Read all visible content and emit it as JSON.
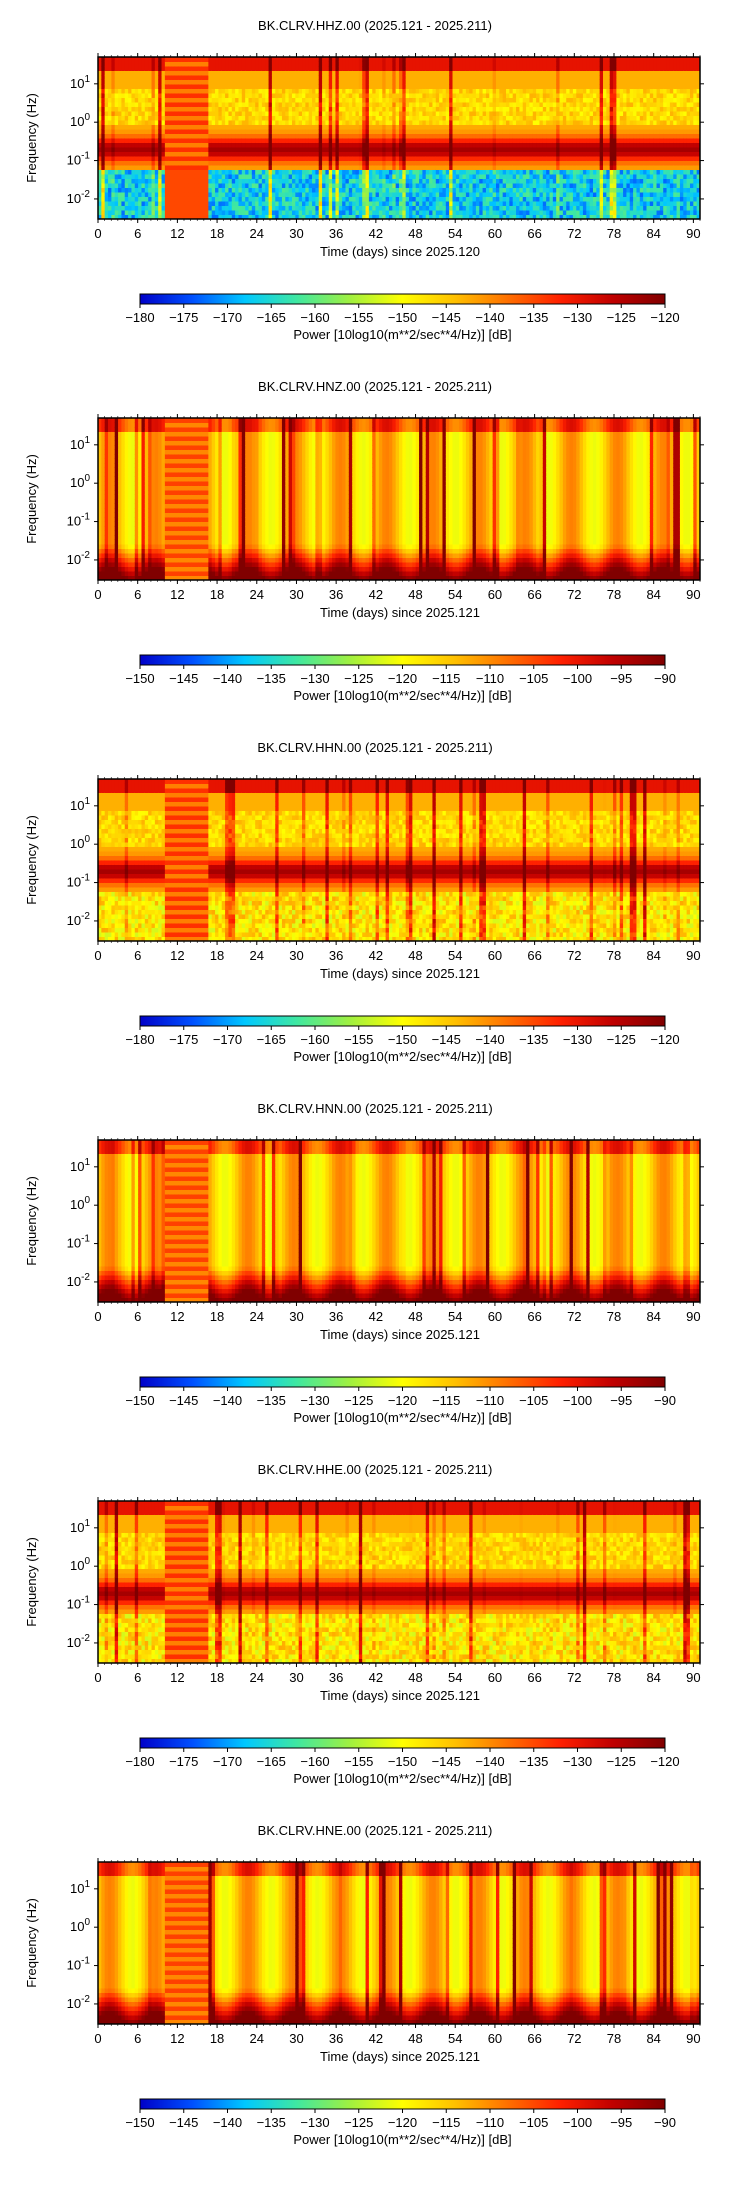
{
  "figure": {
    "panels": [
      {
        "title": "BK.CLRV.HHZ.00 (2025.121 - 2025.211)",
        "xlabel": "Time (days) since 2025.120",
        "ylabel": "Frequency (Hz)",
        "colorbar_label": "Power [10log10(m**2/sec**4/Hz)] [dB]",
        "colorbar_ticks": [
          "−180",
          "−175",
          "−170",
          "−165",
          "−160",
          "−155",
          "−150",
          "−145",
          "−140",
          "−135",
          "−130",
          "−125",
          "−120"
        ],
        "style": "microseism"
      },
      {
        "title": "BK.CLRV.HNZ.00 (2025.121 - 2025.211)",
        "xlabel": "Time (days) since 2025.121",
        "ylabel": "Frequency (Hz)",
        "colorbar_label": "Power [10log10(m**2/sec**4/Hz)] [dB]",
        "colorbar_ticks": [
          "−150",
          "−145",
          "−140",
          "−135",
          "−130",
          "−125",
          "−120",
          "−115",
          "−110",
          "−105",
          "−100",
          "−95",
          "−90"
        ],
        "style": "flat"
      },
      {
        "title": "BK.CLRV.HHN.00 (2025.121 - 2025.211)",
        "xlabel": "Time (days) since 2025.121",
        "ylabel": "Frequency (Hz)",
        "colorbar_label": "Power [10log10(m**2/sec**4/Hz)] [dB]",
        "colorbar_ticks": [
          "−180",
          "−175",
          "−170",
          "−165",
          "−160",
          "−155",
          "−150",
          "−145",
          "−140",
          "−135",
          "−130",
          "−125",
          "−120"
        ],
        "style": "horizontal"
      },
      {
        "title": "BK.CLRV.HNN.00 (2025.121 - 2025.211)",
        "xlabel": "Time (days) since 2025.121",
        "ylabel": "Frequency (Hz)",
        "colorbar_label": "Power [10log10(m**2/sec**4/Hz)] [dB]",
        "colorbar_ticks": [
          "−150",
          "−145",
          "−140",
          "−135",
          "−130",
          "−125",
          "−120",
          "−115",
          "−110",
          "−105",
          "−100",
          "−95",
          "−90"
        ],
        "style": "flat"
      },
      {
        "title": "BK.CLRV.HHE.00 (2025.121 - 2025.211)",
        "xlabel": "Time (days) since 2025.121",
        "ylabel": "Frequency (Hz)",
        "colorbar_label": "Power [10log10(m**2/sec**4/Hz)] [dB]",
        "colorbar_ticks": [
          "−180",
          "−175",
          "−170",
          "−165",
          "−160",
          "−155",
          "−150",
          "−145",
          "−140",
          "−135",
          "−130",
          "−125",
          "−120"
        ],
        "style": "horizontal"
      },
      {
        "title": "BK.CLRV.HNE.00 (2025.121 - 2025.211)",
        "xlabel": "Time (days) since 2025.121",
        "ylabel": "Frequency (Hz)",
        "colorbar_label": "Power [10log10(m**2/sec**4/Hz)] [dB]",
        "colorbar_ticks": [
          "−150",
          "−145",
          "−140",
          "−135",
          "−130",
          "−125",
          "−120",
          "−115",
          "−110",
          "−105",
          "−100",
          "−95",
          "−90"
        ],
        "style": "flat"
      }
    ],
    "colormap": [
      "#0000c8",
      "#0050ff",
      "#00c8ff",
      "#40e8a0",
      "#a0f040",
      "#ffff00",
      "#ffc000",
      "#ff7000",
      "#ff2000",
      "#c00000",
      "#800000"
    ]
  },
  "chart_data": [
    {
      "type": "heatmap",
      "title": "BK.CLRV.HHZ.00 (2025.121 - 2025.211)",
      "xlabel": "Time (days) since 2025.120",
      "ylabel": "Frequency (Hz)",
      "x_ticks": [
        "0",
        "6",
        "12",
        "18",
        "24",
        "30",
        "36",
        "42",
        "48",
        "54",
        "60",
        "66",
        "72",
        "78",
        "84",
        "90"
      ],
      "xlim": [
        0,
        91
      ],
      "y_ticks": [
        "10^-2",
        "10^-1",
        "10^0",
        "10^1"
      ],
      "y_scale": "log",
      "ylim": [
        0.003,
        50
      ],
      "colorbar_label": "Power [10log10(m**2/sec**4/Hz)] [dB]",
      "clim": [
        -180,
        -120
      ],
      "microseism_peak_hz": 0.2
    },
    {
      "type": "heatmap",
      "title": "BK.CLRV.HNZ.00 (2025.121 - 2025.211)",
      "xlabel": "Time (days) since 2025.121",
      "ylabel": "Frequency (Hz)",
      "x_ticks": [
        "0",
        "6",
        "12",
        "18",
        "24",
        "30",
        "36",
        "42",
        "48",
        "54",
        "60",
        "66",
        "72",
        "78",
        "84",
        "90"
      ],
      "xlim": [
        0,
        91
      ],
      "y_ticks": [
        "10^-2",
        "10^-1",
        "10^0",
        "10^1"
      ],
      "y_scale": "log",
      "ylim": [
        0.003,
        50
      ],
      "colorbar_label": "Power [10log10(m**2/sec**4/Hz)] [dB]",
      "clim": [
        -150,
        -90
      ]
    },
    {
      "type": "heatmap",
      "title": "BK.CLRV.HHN.00 (2025.121 - 2025.211)",
      "xlabel": "Time (days) since 2025.121",
      "ylabel": "Frequency (Hz)",
      "x_ticks": [
        "0",
        "6",
        "12",
        "18",
        "24",
        "30",
        "36",
        "42",
        "48",
        "54",
        "60",
        "66",
        "72",
        "78",
        "84",
        "90"
      ],
      "xlim": [
        0,
        91
      ],
      "y_ticks": [
        "10^-2",
        "10^-1",
        "10^0",
        "10^1"
      ],
      "y_scale": "log",
      "ylim": [
        0.003,
        50
      ],
      "colorbar_label": "Power [10log10(m**2/sec**4/Hz)] [dB]",
      "clim": [
        -180,
        -120
      ],
      "microseism_peak_hz": 0.2
    },
    {
      "type": "heatmap",
      "title": "BK.CLRV.HNN.00 (2025.121 - 2025.211)",
      "xlabel": "Time (days) since 2025.121",
      "ylabel": "Frequency (Hz)",
      "x_ticks": [
        "0",
        "6",
        "12",
        "18",
        "24",
        "30",
        "36",
        "42",
        "48",
        "54",
        "60",
        "66",
        "72",
        "78",
        "84",
        "90"
      ],
      "xlim": [
        0,
        91
      ],
      "y_ticks": [
        "10^-2",
        "10^-1",
        "10^0",
        "10^1"
      ],
      "y_scale": "log",
      "ylim": [
        0.003,
        50
      ],
      "colorbar_label": "Power [10log10(m**2/sec**4/Hz)] [dB]",
      "clim": [
        -150,
        -90
      ]
    },
    {
      "type": "heatmap",
      "title": "BK.CLRV.HHE.00 (2025.121 - 2025.211)",
      "xlabel": "Time (days) since 2025.121",
      "ylabel": "Frequency (Hz)",
      "x_ticks": [
        "0",
        "6",
        "12",
        "18",
        "24",
        "30",
        "36",
        "42",
        "48",
        "54",
        "60",
        "66",
        "72",
        "78",
        "84",
        "90"
      ],
      "xlim": [
        0,
        91
      ],
      "y_ticks": [
        "10^-2",
        "10^-1",
        "10^0",
        "10^1"
      ],
      "y_scale": "log",
      "ylim": [
        0.003,
        50
      ],
      "colorbar_label": "Power [10log10(m**2/sec**4/Hz)] [dB]",
      "clim": [
        -180,
        -120
      ],
      "microseism_peak_hz": 0.2
    },
    {
      "type": "heatmap",
      "title": "BK.CLRV.HNE.00 (2025.121 - 2025.211)",
      "xlabel": "Time (days) since 2025.121",
      "ylabel": "Frequency (Hz)",
      "x_ticks": [
        "0",
        "6",
        "12",
        "18",
        "24",
        "30",
        "36",
        "42",
        "48",
        "54",
        "60",
        "66",
        "72",
        "78",
        "84",
        "90"
      ],
      "xlim": [
        0,
        91
      ],
      "y_ticks": [
        "10^-2",
        "10^-1",
        "10^0",
        "10^1"
      ],
      "y_scale": "log",
      "ylim": [
        0.003,
        50
      ],
      "colorbar_label": "Power [10log10(m**2/sec**4/Hz)] [dB]",
      "clim": [
        -150,
        -90
      ]
    }
  ]
}
